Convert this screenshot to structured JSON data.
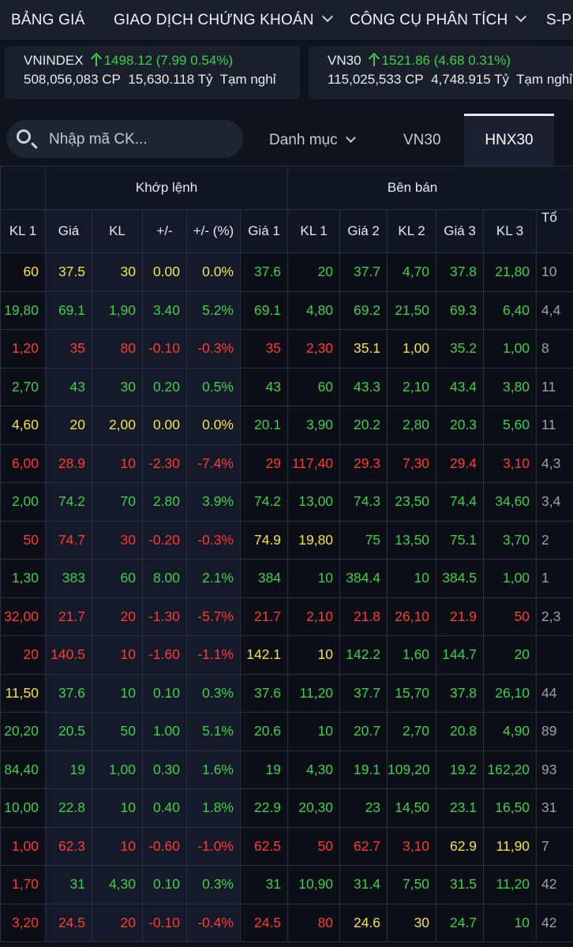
{
  "nav": {
    "items": [
      {
        "label": "BẢNG GIÁ",
        "dropdown": false
      },
      {
        "label": "GIAO DỊCH CHỨNG KHOÁN",
        "dropdown": true
      },
      {
        "label": "CÔNG CỤ PHÂN TÍCH",
        "dropdown": true
      },
      {
        "label": "S-P",
        "dropdown": false
      }
    ]
  },
  "indices": [
    {
      "name": "VNINDEX",
      "value": "1498.12",
      "change": "(7.99  0.54%)",
      "volume": "508,056,083 CP",
      "turnover": "15,630.118 Tỷ",
      "status": "Tạm nghỉ"
    },
    {
      "name": "VN30",
      "value": "1521.86",
      "change": "(4.68  0.31%)",
      "volume": "115,025,533 CP",
      "turnover": "4,748.915 Tỷ",
      "status": "Tạm nghỉ"
    }
  ],
  "toolbar": {
    "search_placeholder": "Nhập mã CK...",
    "tabs": [
      {
        "label": "Danh mục",
        "dropdown": true,
        "active": false
      },
      {
        "label": "VN30",
        "dropdown": false,
        "active": false
      },
      {
        "label": "HNX30",
        "dropdown": false,
        "active": true
      }
    ]
  },
  "table": {
    "group_headers": {
      "match": "Khớp lệnh",
      "sell": "Bên bán",
      "total": "Tổ"
    },
    "columns": [
      "KL 1",
      "Giá",
      "KL",
      "+/-",
      "+/- (%)",
      "Giá 1",
      "KL 1",
      "Giá 2",
      "KL 2",
      "Giá 3",
      "KL 3"
    ],
    "rows": [
      {
        "cells": [
          "60",
          "37.5",
          "30",
          "0.00",
          "0.0%",
          "37.6",
          "20",
          "37.7",
          "4,70",
          "37.8",
          "21,80",
          "10"
        ],
        "colors": [
          "e",
          "e",
          "e",
          "e",
          "e",
          "u",
          "u",
          "u",
          "u",
          "u",
          "u",
          "u"
        ]
      },
      {
        "cells": [
          "19,80",
          "69.1",
          "1,90",
          "3.40",
          "5.2%",
          "69.1",
          "4,80",
          "69.2",
          "21,50",
          "69.3",
          "6,40",
          "4,4"
        ],
        "colors": [
          "u",
          "u",
          "u",
          "u",
          "u",
          "u",
          "u",
          "u",
          "u",
          "u",
          "u",
          "u"
        ]
      },
      {
        "cells": [
          "1,20",
          "35",
          "80",
          "-0.10",
          "-0.3%",
          "35",
          "2,30",
          "35.1",
          "1,00",
          "35.2",
          "1,00",
          "8"
        ],
        "colors": [
          "d",
          "d",
          "d",
          "d",
          "d",
          "d",
          "d",
          "e",
          "e",
          "u",
          "u",
          "u"
        ]
      },
      {
        "cells": [
          "2,70",
          "43",
          "30",
          "0.20",
          "0.5%",
          "43",
          "60",
          "43.3",
          "2,10",
          "43.4",
          "3,80",
          "11"
        ],
        "colors": [
          "u",
          "u",
          "u",
          "u",
          "u",
          "u",
          "u",
          "u",
          "u",
          "u",
          "u",
          "u"
        ]
      },
      {
        "cells": [
          "4,60",
          "20",
          "2,00",
          "0.00",
          "0.0%",
          "20.1",
          "3,90",
          "20.2",
          "2,80",
          "20.3",
          "5,60",
          "11"
        ],
        "colors": [
          "e",
          "e",
          "e",
          "e",
          "e",
          "u",
          "u",
          "u",
          "u",
          "u",
          "u",
          "u"
        ]
      },
      {
        "cells": [
          "6,00",
          "28.9",
          "10",
          "-2.30",
          "-7.4%",
          "29",
          "117,40",
          "29.3",
          "7,30",
          "29.4",
          "3,10",
          "4,3"
        ],
        "colors": [
          "d",
          "d",
          "d",
          "d",
          "d",
          "d",
          "d",
          "d",
          "d",
          "d",
          "d",
          "u"
        ]
      },
      {
        "cells": [
          "2,00",
          "74.2",
          "70",
          "2.80",
          "3.9%",
          "74.2",
          "13,00",
          "74.3",
          "23,50",
          "74.4",
          "34,60",
          "3,4"
        ],
        "colors": [
          "u",
          "u",
          "u",
          "u",
          "u",
          "u",
          "u",
          "u",
          "u",
          "u",
          "u",
          "u"
        ]
      },
      {
        "cells": [
          "50",
          "74.7",
          "30",
          "-0.20",
          "-0.3%",
          "74.9",
          "19,80",
          "75",
          "13,50",
          "75.1",
          "3,70",
          "2"
        ],
        "colors": [
          "d",
          "d",
          "d",
          "d",
          "d",
          "e",
          "e",
          "u",
          "u",
          "u",
          "u",
          "u"
        ]
      },
      {
        "cells": [
          "1,30",
          "383",
          "60",
          "8.00",
          "2.1%",
          "384",
          "10",
          "384.4",
          "10",
          "384.5",
          "1,00",
          "1"
        ],
        "colors": [
          "u",
          "u",
          "u",
          "u",
          "u",
          "u",
          "u",
          "u",
          "u",
          "u",
          "u",
          "u"
        ]
      },
      {
        "cells": [
          "32,00",
          "21.7",
          "20",
          "-1.30",
          "-5.7%",
          "21.7",
          "2,10",
          "21.8",
          "26,10",
          "21.9",
          "50",
          "2,3"
        ],
        "colors": [
          "d",
          "d",
          "d",
          "d",
          "d",
          "d",
          "d",
          "d",
          "d",
          "d",
          "d",
          "u"
        ]
      },
      {
        "cells": [
          "20",
          "140.5",
          "10",
          "-1.60",
          "-1.1%",
          "142.1",
          "10",
          "142.2",
          "1,60",
          "144.7",
          "20",
          ""
        ],
        "colors": [
          "d",
          "d",
          "d",
          "d",
          "d",
          "e",
          "e",
          "u",
          "u",
          "u",
          "u",
          "u"
        ]
      },
      {
        "cells": [
          "11,50",
          "37.6",
          "10",
          "0.10",
          "0.3%",
          "37.6",
          "11,20",
          "37.7",
          "15,70",
          "37.8",
          "26,10",
          "44"
        ],
        "colors": [
          "e",
          "u",
          "u",
          "u",
          "u",
          "u",
          "u",
          "u",
          "u",
          "u",
          "u",
          "u"
        ]
      },
      {
        "cells": [
          "20,20",
          "20.5",
          "50",
          "1.00",
          "5.1%",
          "20.6",
          "10",
          "20.7",
          "2,70",
          "20.8",
          "4,90",
          "89"
        ],
        "colors": [
          "u",
          "u",
          "u",
          "u",
          "u",
          "u",
          "u",
          "u",
          "u",
          "u",
          "u",
          "u"
        ]
      },
      {
        "cells": [
          "84,40",
          "19",
          "1,00",
          "0.30",
          "1.6%",
          "19",
          "4,30",
          "19.1",
          "109,20",
          "19.2",
          "162,20",
          "93"
        ],
        "colors": [
          "u",
          "u",
          "u",
          "u",
          "u",
          "u",
          "u",
          "u",
          "u",
          "u",
          "u",
          "u"
        ]
      },
      {
        "cells": [
          "10,00",
          "22.8",
          "10",
          "0.40",
          "1.8%",
          "22.9",
          "20,30",
          "23",
          "14,50",
          "23.1",
          "16,50",
          "31"
        ],
        "colors": [
          "u",
          "u",
          "u",
          "u",
          "u",
          "u",
          "u",
          "u",
          "u",
          "u",
          "u",
          "u"
        ]
      },
      {
        "cells": [
          "1,00",
          "62.3",
          "10",
          "-0.60",
          "-1.0%",
          "62.5",
          "50",
          "62.7",
          "3,10",
          "62.9",
          "11,90",
          "7"
        ],
        "colors": [
          "d",
          "d",
          "d",
          "d",
          "d",
          "d",
          "d",
          "d",
          "d",
          "e",
          "e",
          "u"
        ]
      },
      {
        "cells": [
          "1,70",
          "31",
          "4,30",
          "0.10",
          "0.3%",
          "31",
          "10,90",
          "31.4",
          "7,50",
          "31.5",
          "11,20",
          "42"
        ],
        "colors": [
          "d",
          "u",
          "u",
          "u",
          "u",
          "u",
          "u",
          "u",
          "u",
          "u",
          "u",
          "u"
        ]
      },
      {
        "cells": [
          "3,20",
          "24.5",
          "20",
          "-0.10",
          "-0.4%",
          "24.5",
          "80",
          "24.6",
          "30",
          "24.7",
          "10",
          "42"
        ],
        "colors": [
          "d",
          "d",
          "d",
          "d",
          "d",
          "d",
          "d",
          "e",
          "e",
          "u",
          "u",
          "u"
        ]
      }
    ]
  },
  "colors": {
    "ceiling_ref": "#f5e24b",
    "up": "#3fd04a",
    "down": "#ff3b30",
    "header_bg": "#1b1f2c"
  }
}
